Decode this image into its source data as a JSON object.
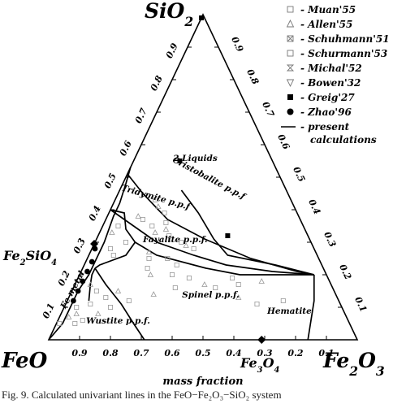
{
  "chart_data": {
    "type": "ternary",
    "vertices": {
      "top": {
        "base": "SiO",
        "sub": "2"
      },
      "left": {
        "base": "FeO",
        "sub": ""
      },
      "right": {
        "base": "Fe",
        "sub": "2",
        "base2": "O",
        "sub2": "3"
      }
    },
    "axis_label_bottom": "mass fraction",
    "ticks_bottom": [
      "0.9",
      "0.8",
      "0.7",
      "0.6",
      "0.5",
      "0.4",
      "0.3",
      "0.2",
      "0.1"
    ],
    "ticks_left": [
      "0.1",
      "0.2",
      "0.3",
      "0.4",
      "0.5",
      "0.6",
      "0.7",
      "0.8",
      "0.9"
    ],
    "ticks_right": [
      "0.9",
      "0.8",
      "0.7",
      "0.6",
      "0.5",
      "0.4",
      "0.3",
      "0.2",
      "0.1"
    ],
    "compounds": {
      "fayalite": {
        "base": "Fe",
        "sub": "2",
        "base2": "SiO",
        "sub2": "4",
        "SiO2": 0.295,
        "Fe2O3": 0.0
      },
      "magnetite": {
        "base": "Fe",
        "sub": "3",
        "base2": "O",
        "sub2": "4",
        "SiO2": 0.0,
        "Fe2O3": 0.69
      }
    },
    "field_labels": [
      {
        "text": "2 Liquids",
        "SiO2": 0.55,
        "Fe2O3": 0.2
      },
      {
        "text": "Cristobalite p.p.f",
        "SiO2": 0.49,
        "Fe2O3": 0.27
      },
      {
        "text": "Tridymite p.p.f",
        "SiO2": 0.43,
        "Fe2O3": 0.14
      },
      {
        "text": "Fayalite p.p.f.",
        "SiO2": 0.3,
        "Fe2O3": 0.26
      },
      {
        "text": "Spinel p.p.f.",
        "SiO2": 0.13,
        "Fe2O3": 0.46
      },
      {
        "text": "Hematite",
        "SiO2": 0.08,
        "Fe2O3": 0.74
      },
      {
        "text": "Wustite p.p.f.",
        "SiO2": 0.05,
        "Fe2O3": 0.2
      },
      {
        "text": "Fe metal",
        "SiO2": 0.15,
        "Fe2O3": 0.01
      }
    ],
    "legend": [
      {
        "marker": "open-square",
        "label": "Muan'55"
      },
      {
        "marker": "triangle-up",
        "label": "Allen'55"
      },
      {
        "marker": "square-x",
        "label": "Schuhmann'51"
      },
      {
        "marker": "open-square",
        "label": "Schurmann'53"
      },
      {
        "marker": "hourglass",
        "label": "Michal'52"
      },
      {
        "marker": "triangle-down",
        "label": "Bowen'32"
      },
      {
        "marker": "filled-square",
        "label": "Greig'27"
      },
      {
        "marker": "filled-circle",
        "label": "Zhao'96"
      },
      {
        "marker": "line",
        "label": "present",
        "label2": "calculations"
      }
    ],
    "calculated_lines": [
      {
        "name": "cristobalite-boundary",
        "points": [
          [
            0.51,
            0.0
          ],
          [
            0.45,
            0.08
          ],
          [
            0.37,
            0.2
          ],
          [
            0.31,
            0.35
          ],
          [
            0.25,
            0.53
          ],
          [
            0.21,
            0.7
          ],
          [
            0.2,
            0.76
          ]
        ]
      },
      {
        "name": "immiscibility-boundary",
        "points": [
          [
            0.46,
            0.2
          ],
          [
            0.39,
            0.29
          ],
          [
            0.31,
            0.38
          ],
          [
            0.26,
            0.45
          ],
          [
            0.23,
            0.62
          ],
          [
            0.2,
            0.76
          ]
        ]
      },
      {
        "name": "tridymite-boundary",
        "points": [
          [
            0.4,
            0.0
          ],
          [
            0.35,
            0.1
          ],
          [
            0.3,
            0.2
          ],
          [
            0.26,
            0.34
          ],
          [
            0.23,
            0.46
          ],
          [
            0.21,
            0.62
          ],
          [
            0.2,
            0.76
          ]
        ]
      },
      {
        "name": "tridymite-fayalite",
        "points": [
          [
            0.4,
            0.0
          ],
          [
            0.39,
            0.05
          ],
          [
            0.34,
            0.08
          ],
          [
            0.3,
            0.13
          ]
        ]
      },
      {
        "name": "fayalite-spinel-upper",
        "points": [
          [
            0.3,
            0.13
          ],
          [
            0.26,
            0.22
          ],
          [
            0.22,
            0.4
          ],
          [
            0.2,
            0.52
          ],
          [
            0.2,
            0.76
          ]
        ]
      },
      {
        "name": "fayalite-spinel-lower",
        "points": [
          [
            0.3,
            0.13
          ],
          [
            0.26,
            0.12
          ],
          [
            0.23,
            0.05
          ],
          [
            0.22,
            0.04
          ]
        ]
      },
      {
        "name": "wustite-fayalite",
        "points": [
          [
            0.22,
            0.04
          ],
          [
            0.2,
            0.04
          ],
          [
            0.17,
            0.05
          ],
          [
            0.12,
            0.07
          ]
        ]
      },
      {
        "name": "wustite-spinel",
        "points": [
          [
            0.22,
            0.04
          ],
          [
            0.17,
            0.1
          ],
          [
            0.11,
            0.18
          ],
          [
            0.05,
            0.25
          ],
          [
            0.0,
            0.31
          ]
        ]
      },
      {
        "name": "hematite-spinel",
        "points": [
          [
            0.2,
            0.76
          ],
          [
            0.12,
            0.8
          ],
          [
            0.06,
            0.82
          ],
          [
            0.0,
            0.84
          ]
        ]
      },
      {
        "name": "iron-saturation",
        "points": [
          [
            0.0,
            0.0
          ],
          [
            0.05,
            0.02
          ],
          [
            0.1,
            0.02
          ],
          [
            0.15,
            0.02
          ],
          [
            0.2,
            0.03
          ],
          [
            0.26,
            0.03
          ],
          [
            0.3,
            0.03
          ],
          [
            0.38,
            0.02
          ],
          [
            0.42,
            0.02
          ],
          [
            0.48,
            0.01
          ],
          [
            0.53,
            0.0
          ]
        ]
      }
    ],
    "zhao96_points": [
      [
        0.28,
        0.01
      ],
      [
        0.24,
        0.02
      ],
      [
        0.21,
        0.02
      ],
      [
        0.18,
        0.02
      ],
      [
        0.15,
        0.02
      ],
      [
        0.12,
        0.02
      ]
    ],
    "greig27_points": [
      [
        0.99,
        0.0
      ],
      [
        0.55,
        0.15
      ],
      [
        0.32,
        0.42
      ]
    ],
    "scatter_points": [
      [
        0.43,
        0.13
      ],
      [
        0.41,
        0.15
      ],
      [
        0.39,
        0.18
      ],
      [
        0.36,
        0.2
      ],
      [
        0.34,
        0.21
      ],
      [
        0.32,
        0.23
      ],
      [
        0.3,
        0.28
      ],
      [
        0.29,
        0.3
      ],
      [
        0.28,
        0.33
      ],
      [
        0.31,
        0.24
      ],
      [
        0.33,
        0.18
      ],
      [
        0.35,
        0.16
      ],
      [
        0.37,
        0.12
      ],
      [
        0.38,
        0.1
      ],
      [
        0.25,
        0.26
      ],
      [
        0.23,
        0.3
      ],
      [
        0.27,
        0.19
      ],
      [
        0.25,
        0.2
      ],
      [
        0.22,
        0.21
      ],
      [
        0.2,
        0.23
      ],
      [
        0.2,
        0.3
      ],
      [
        0.19,
        0.36
      ],
      [
        0.17,
        0.42
      ],
      [
        0.16,
        0.46
      ],
      [
        0.17,
        0.53
      ],
      [
        0.13,
        0.55
      ],
      [
        0.11,
        0.62
      ],
      [
        0.12,
        0.7
      ],
      [
        0.18,
        0.6
      ],
      [
        0.19,
        0.5
      ],
      [
        0.16,
        0.33
      ],
      [
        0.14,
        0.27
      ],
      [
        0.12,
        0.2
      ],
      [
        0.1,
        0.15
      ],
      [
        0.08,
        0.12
      ],
      [
        0.06,
        0.08
      ],
      [
        0.05,
        0.06
      ],
      [
        0.08,
        0.05
      ],
      [
        0.11,
        0.08
      ],
      [
        0.13,
        0.12
      ],
      [
        0.15,
        0.15
      ],
      [
        0.26,
        0.08
      ],
      [
        0.28,
        0.06
      ],
      [
        0.33,
        0.04
      ],
      [
        0.35,
        0.05
      ],
      [
        0.3,
        0.1
      ],
      [
        0.17,
        0.05
      ],
      [
        0.15,
        0.08
      ],
      [
        0.05,
        0.01
      ],
      [
        0.07,
        0.03
      ],
      [
        0.1,
        0.04
      ]
    ]
  },
  "caption": "Fig. 9.  Calculated univariant lines in the FeO−Fe₂O₃−SiO₂ system"
}
